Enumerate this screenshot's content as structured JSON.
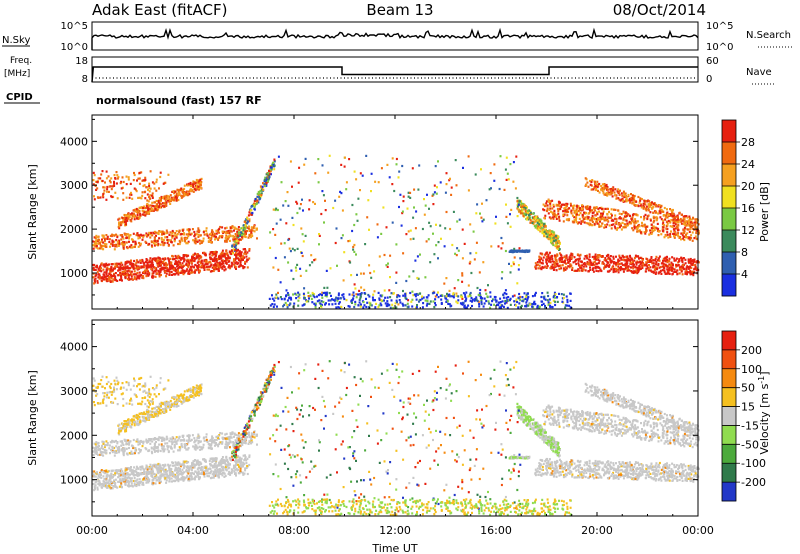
{
  "header": {
    "station": "Adak East (fitACF)",
    "beam": "Beam 13",
    "date": "08/Oct/2014"
  },
  "status_panel": {
    "nsky_label": "N.Sky",
    "nsky_ticks": [
      "10^5",
      "10^0"
    ],
    "nsearch_label": "N.Search",
    "nsearch_ticks": [
      "10^5",
      "10^0"
    ],
    "freq_label": "Freq.",
    "freq_unit": "[MHz]",
    "freq_ticks": [
      "18",
      "8"
    ],
    "nave_label": "Nave",
    "nave_ticks": [
      "60",
      "0"
    ],
    "cpid_label": "CPID",
    "cpid_value": "normalsound (fast) 157 RF"
  },
  "chart_data": [
    {
      "type": "heatmap",
      "name": "power",
      "ylabel": "Slant Range [km]",
      "y_ticks": [
        "1000",
        "2000",
        "3000",
        "4000"
      ],
      "y_values": [
        1000,
        2000,
        3000,
        4000
      ],
      "ylim": [
        180,
        4600
      ],
      "colorbar_label": "Power [dB]",
      "colorbar_ticks": [
        "4",
        "8",
        "12",
        "16",
        "20",
        "24",
        "28"
      ],
      "colorbar_values": [
        4,
        8,
        12,
        16,
        20,
        24,
        28
      ],
      "colorbar_colors": [
        "#1a2fe0",
        "#2f5fb0",
        "#3b8a5c",
        "#7ac943",
        "#f0e020",
        "#f5a020",
        "#f06a10",
        "#e62010"
      ]
    },
    {
      "type": "heatmap",
      "name": "velocity",
      "ylabel": "Slant Range [km]",
      "y_ticks": [
        "1000",
        "2000",
        "3000",
        "4000"
      ],
      "y_values": [
        1000,
        2000,
        3000,
        4000
      ],
      "ylim": [
        180,
        4600
      ],
      "colorbar_label": "Velocity [m s",
      "colorbar_label_sup": "-1",
      "colorbar_label_end": "]",
      "colorbar_ticks": [
        "200",
        "100",
        "50",
        "15",
        "-15",
        "-50",
        "-100",
        "-200"
      ],
      "colorbar_values": [
        200,
        100,
        50,
        15,
        -15,
        -50,
        -100,
        -200
      ],
      "colorbar_colors": [
        "#2238c8",
        "#2f7a4a",
        "#4caa3c",
        "#90dc50",
        "#c8c8c8",
        "#f5c020",
        "#f58a10",
        "#f05010",
        "#e62010"
      ]
    }
  ],
  "xaxis": {
    "label": "Time UT",
    "ticks": [
      "00:00",
      "04:00",
      "08:00",
      "12:00",
      "16:00",
      "20:00",
      "00:00"
    ],
    "tick_hours": [
      0,
      4,
      8,
      12,
      16,
      20,
      24
    ],
    "xlim_hours": [
      0,
      24
    ]
  },
  "frequency_series": {
    "hours": [
      0,
      0.05,
      9.9,
      9.9,
      18.1,
      18.1,
      24
    ],
    "mhz": [
      8,
      14,
      14,
      11,
      11,
      14,
      14
    ]
  }
}
